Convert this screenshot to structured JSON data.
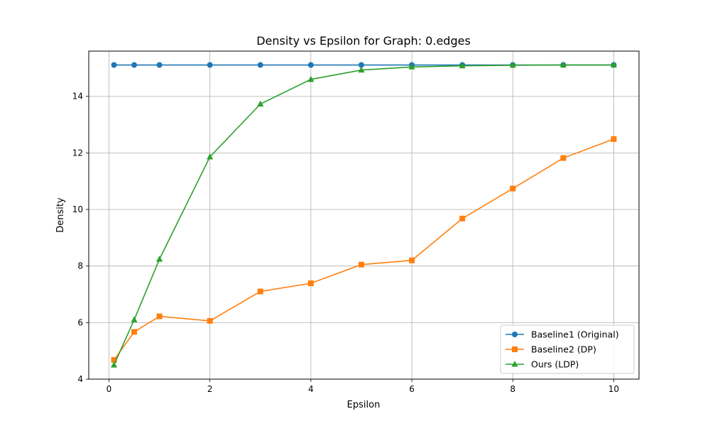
{
  "chart_data": {
    "type": "line",
    "title": "Density vs Epsilon for Graph: 0.edges",
    "xlabel": "Epsilon",
    "ylabel": "Density",
    "xlim": [
      -0.4,
      10.5
    ],
    "ylim": [
      4.0,
      15.6
    ],
    "xticks": [
      0,
      2,
      4,
      6,
      8,
      10
    ],
    "yticks": [
      4,
      6,
      8,
      10,
      12,
      14
    ],
    "grid": true,
    "legend_position": "lower-right",
    "x": [
      0.1,
      0.5,
      1,
      2,
      3,
      4,
      5,
      6,
      7,
      8,
      9,
      10
    ],
    "series": [
      {
        "name": "Baseline1 (Original)",
        "color": "#1f77b4",
        "marker": "circle",
        "values": [
          15.11,
          15.11,
          15.11,
          15.11,
          15.11,
          15.11,
          15.11,
          15.11,
          15.11,
          15.11,
          15.11,
          15.11
        ]
      },
      {
        "name": "Baseline2 (DP)",
        "color": "#ff7f0e",
        "marker": "square",
        "values": [
          4.68,
          5.67,
          6.22,
          6.06,
          7.1,
          7.39,
          8.05,
          8.2,
          9.68,
          10.74,
          11.82,
          12.49
        ]
      },
      {
        "name": "Ours (LDP)",
        "color": "#2ca02c",
        "marker": "triangle",
        "values": [
          4.5,
          6.1,
          8.24,
          11.86,
          13.73,
          14.6,
          14.93,
          15.04,
          15.08,
          15.1,
          15.11,
          15.11
        ]
      }
    ]
  }
}
